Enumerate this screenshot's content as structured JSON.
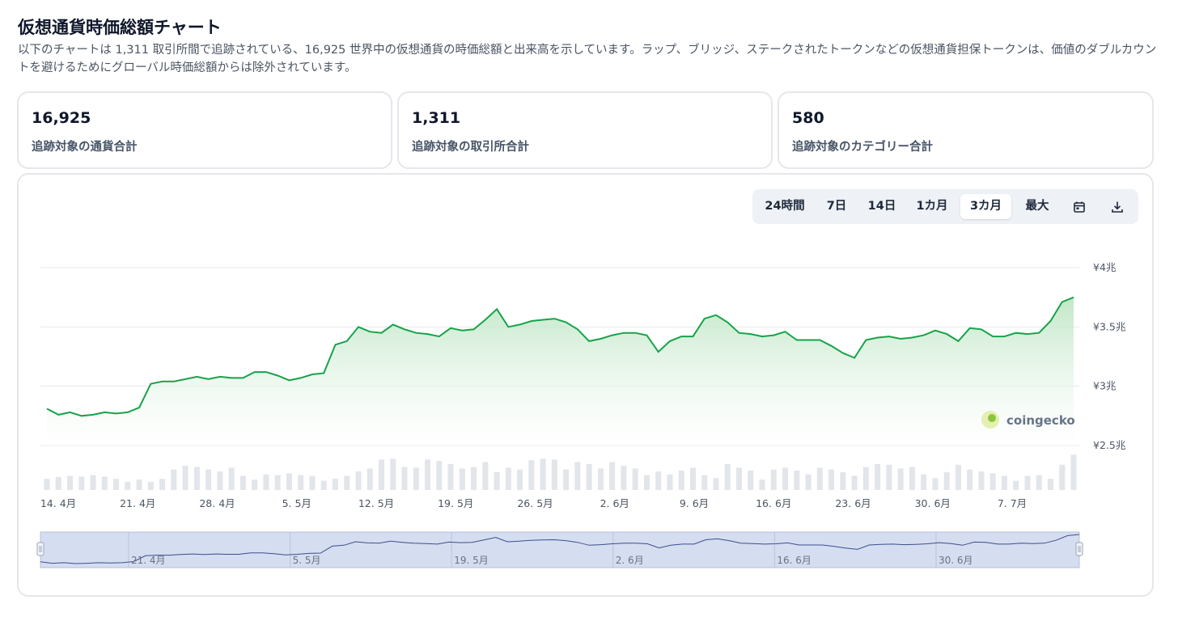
{
  "page": {
    "title": "仮想通貨時価総額チャート",
    "description": "以下のチャートは 1,311 取引所間で追跡されている、16,925 世界中の仮想通貨の時価総額と出来高を示しています。ラップ、ブリッジ、ステークされたトークンなどの仮想通貨担保トークンは、価値のダブルカウントを避けるためにグローバル時価総額からは除外されています。"
  },
  "stats": [
    {
      "value": "16,925",
      "label": "追跡対象の通貨合計"
    },
    {
      "value": "1,311",
      "label": "追跡対象の取引所合計"
    },
    {
      "value": "580",
      "label": "追跡対象のカテゴリー合計"
    }
  ],
  "range_selector": {
    "buttons": [
      "24時間",
      "7日",
      "14日",
      "1カ月",
      "3カ月",
      "最大"
    ],
    "active": "3カ月",
    "icons": [
      "calendar-icon",
      "download-icon"
    ]
  },
  "watermark": {
    "text": "coingecko"
  },
  "colors": {
    "line": "#16a34a",
    "area_top": "#bfe6c5",
    "volume": "#e2e5ea",
    "navigator_bg": "#d5ddf0",
    "navigator_line": "#3b4f8f"
  },
  "chart_data": {
    "type": "area",
    "y_unit": "兆円",
    "ylim": [
      2.5,
      4.0
    ],
    "y_ticks": [
      "¥2.5兆",
      "¥3兆",
      "¥3.5兆",
      "¥4兆"
    ],
    "x_ticks": [
      "14. 4月",
      "21. 4月",
      "28. 4月",
      "5. 5月",
      "12. 5月",
      "19. 5月",
      "26. 5月",
      "2. 6月",
      "9. 6月",
      "16. 6月",
      "23. 6月",
      "30. 6月",
      "7. 7月"
    ],
    "navigator_ticks": [
      "21. 4月",
      "5. 5月",
      "19. 5月",
      "2. 6月",
      "16. 6月",
      "30. 6月"
    ],
    "grid": true,
    "legend": "none",
    "series": [
      {
        "values": [
          2.81,
          2.76,
          2.78,
          2.75,
          2.76,
          2.78,
          2.77,
          2.78,
          2.82,
          3.02,
          3.04,
          3.04,
          3.06,
          3.08,
          3.06,
          3.08,
          3.07,
          3.07,
          3.12,
          3.12,
          3.09,
          3.05,
          3.07,
          3.1,
          3.11,
          3.35,
          3.38,
          3.5,
          3.46,
          3.45,
          3.52,
          3.48,
          3.45,
          3.44,
          3.42,
          3.49,
          3.47,
          3.48,
          3.56,
          3.65,
          3.5,
          3.52,
          3.55,
          3.56,
          3.57,
          3.54,
          3.48,
          3.38,
          3.4,
          3.43,
          3.45,
          3.45,
          3.43,
          3.29,
          3.38,
          3.42,
          3.42,
          3.57,
          3.6,
          3.54,
          3.45,
          3.44,
          3.42,
          3.43,
          3.46,
          3.39,
          3.39,
          3.39,
          3.34,
          3.28,
          3.24,
          3.39,
          3.41,
          3.42,
          3.4,
          3.41,
          3.43,
          3.47,
          3.44,
          3.38,
          3.49,
          3.48,
          3.42,
          3.42,
          3.45,
          3.44,
          3.45,
          3.55,
          3.71,
          3.75
        ]
      },
      {
        "name": "volume",
        "values": [
          0.3,
          0.35,
          0.38,
          0.36,
          0.4,
          0.36,
          0.3,
          0.22,
          0.28,
          0.22,
          0.3,
          0.55,
          0.65,
          0.62,
          0.55,
          0.5,
          0.6,
          0.38,
          0.28,
          0.42,
          0.4,
          0.45,
          0.4,
          0.38,
          0.25,
          0.3,
          0.38,
          0.5,
          0.58,
          0.82,
          0.84,
          0.62,
          0.6,
          0.82,
          0.78,
          0.7,
          0.58,
          0.62,
          0.75,
          0.48,
          0.6,
          0.55,
          0.8,
          0.84,
          0.82,
          0.55,
          0.75,
          0.7,
          0.58,
          0.75,
          0.65,
          0.58,
          0.4,
          0.5,
          0.42,
          0.52,
          0.6,
          0.4,
          0.32,
          0.7,
          0.6,
          0.52,
          0.28,
          0.55,
          0.6,
          0.52,
          0.42,
          0.6,
          0.55,
          0.48,
          0.38,
          0.62,
          0.7,
          0.68,
          0.58,
          0.62,
          0.42,
          0.32,
          0.48,
          0.68,
          0.55,
          0.5,
          0.45,
          0.38,
          0.25,
          0.38,
          0.4,
          0.3,
          0.68,
          0.95
        ]
      }
    ]
  }
}
